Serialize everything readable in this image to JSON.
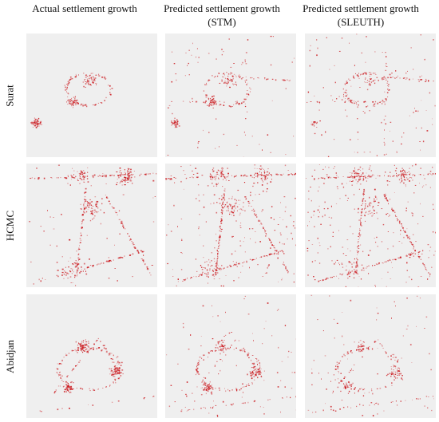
{
  "columns": [
    {
      "line1": "Actual settlement growth",
      "line2": ""
    },
    {
      "line1": "Predicted settlement growth",
      "line2": "(STM)"
    },
    {
      "line1": "Predicted settlement growth",
      "line2": "(SLEUTH)"
    }
  ],
  "rows": [
    {
      "label": "Surat"
    },
    {
      "label": "HCMC"
    },
    {
      "label": "Abidjan"
    }
  ],
  "colors": {
    "panel_background": "#efefef",
    "growth": "#cc1f24"
  }
}
